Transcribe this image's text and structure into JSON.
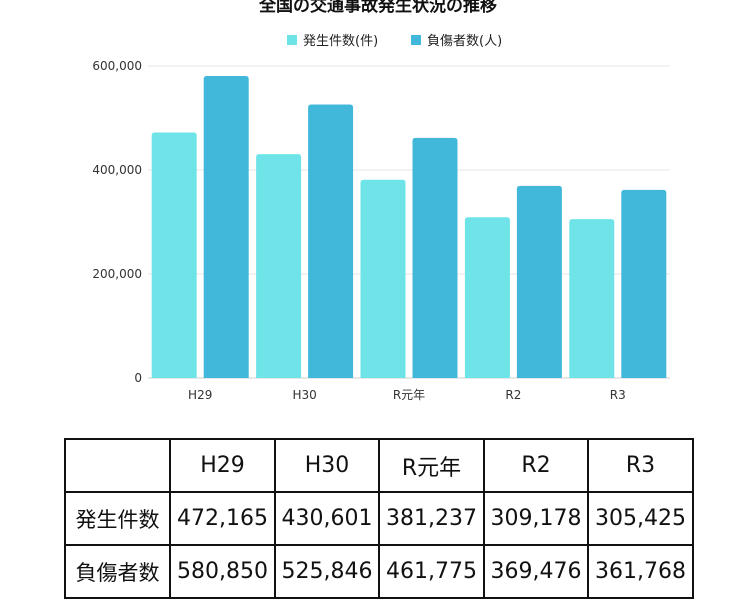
{
  "chart_data": {
    "type": "bar",
    "title": "全国の交通事故発生状況の推移",
    "categories": [
      "H29",
      "H30",
      "R元年",
      "R2",
      "R3"
    ],
    "series": [
      {
        "name": "発生件数(件)",
        "values": [
          472165,
          430601,
          381237,
          309178,
          305425
        ],
        "color": "#6ee4e8"
      },
      {
        "name": "負傷者数(人)",
        "values": [
          580850,
          525846,
          461775,
          369476,
          361768
        ],
        "color": "#41b8d9"
      }
    ],
    "ylim": [
      0,
      600000
    ],
    "yticks": [
      0,
      200000,
      400000,
      600000
    ],
    "ytick_labels": [
      "0",
      "200,000",
      "400,000",
      "600,000"
    ],
    "grid": true,
    "legend_position": "top-center"
  },
  "table": {
    "headers": [
      "",
      "H29",
      "H30",
      "R元年",
      "R2",
      "R3"
    ],
    "rows": [
      {
        "label": "発生件数",
        "cells": [
          "472,165",
          "430,601",
          "381,237",
          "309,178",
          "305,425"
        ]
      },
      {
        "label": "負傷者数",
        "cells": [
          "580,850",
          "525,846",
          "461,775",
          "369,476",
          "361,768"
        ]
      }
    ]
  }
}
